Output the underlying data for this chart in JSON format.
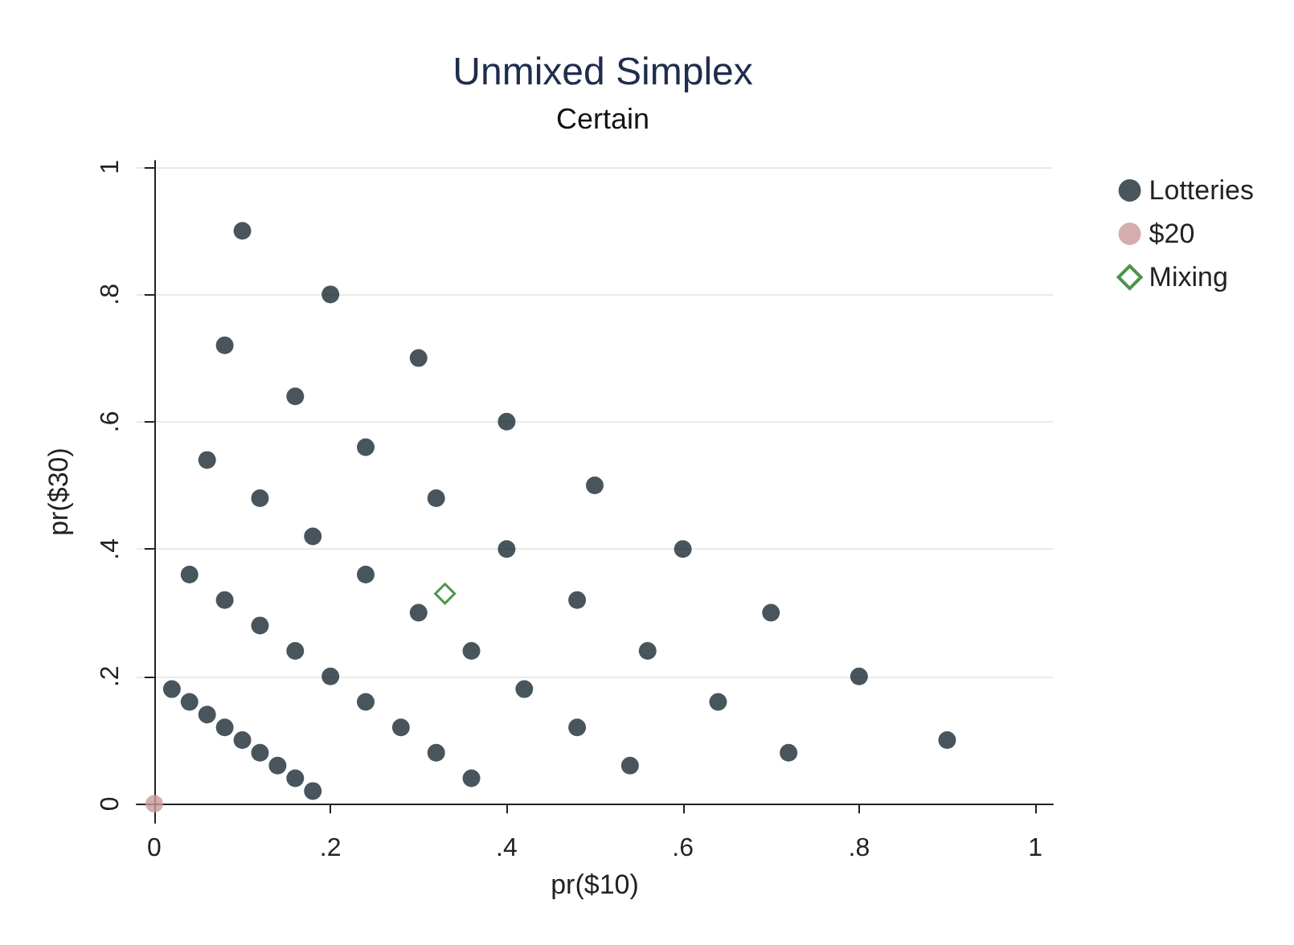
{
  "chart_data": {
    "type": "scatter",
    "title": "Unmixed Simplex",
    "subtitle": "Certain",
    "xlabel": "pr($10)",
    "ylabel": "pr($30)",
    "xlim": [
      -0.02,
      1.02
    ],
    "ylim": [
      -0.03,
      1.01
    ],
    "xticks": [
      {
        "value": 0,
        "label": "0"
      },
      {
        "value": 0.2,
        "label": ".2"
      },
      {
        "value": 0.4,
        "label": ".4"
      },
      {
        "value": 0.6,
        "label": ".6"
      },
      {
        "value": 0.8,
        "label": ".8"
      },
      {
        "value": 1,
        "label": "1"
      }
    ],
    "yticks": [
      {
        "value": 0,
        "label": "0"
      },
      {
        "value": 0.2,
        "label": ".2"
      },
      {
        "value": 0.4,
        "label": ".4"
      },
      {
        "value": 0.6,
        "label": ".6"
      },
      {
        "value": 0.8,
        "label": ".8"
      },
      {
        "value": 1,
        "label": "1"
      }
    ],
    "grid": "y",
    "legend": "right",
    "series": [
      {
        "name": "Lotteries",
        "color": "#1b2a33",
        "marker": "circle",
        "x": [
          0.1,
          0.2,
          0.08,
          0.3,
          0.16,
          0.4,
          0.06,
          0.24,
          0.12,
          0.32,
          0.5,
          0.18,
          0.4,
          0.6,
          0.04,
          0.24,
          0.08,
          0.3,
          0.48,
          0.7,
          0.12,
          0.16,
          0.36,
          0.56,
          0.2,
          0.8,
          0.02,
          0.42,
          0.04,
          0.24,
          0.64,
          0.06,
          0.08,
          0.28,
          0.48,
          0.1,
          0.9,
          0.12,
          0.32,
          0.72,
          0.14,
          0.54,
          0.16,
          0.36,
          0.18
        ],
        "values": [
          0.9,
          0.8,
          0.72,
          0.7,
          0.64,
          0.6,
          0.54,
          0.56,
          0.48,
          0.48,
          0.5,
          0.42,
          0.4,
          0.4,
          0.36,
          0.36,
          0.32,
          0.3,
          0.32,
          0.3,
          0.28,
          0.24,
          0.24,
          0.24,
          0.2,
          0.2,
          0.18,
          0.18,
          0.16,
          0.16,
          0.16,
          0.14,
          0.12,
          0.12,
          0.12,
          0.1,
          0.1,
          0.08,
          0.08,
          0.08,
          0.06,
          0.06,
          0.04,
          0.04,
          0.02
        ]
      },
      {
        "name": "$20",
        "color": "#c99a9a",
        "marker": "circle",
        "x": [
          0
        ],
        "values": [
          0
        ]
      },
      {
        "name": "Mixing",
        "color": "#1e7a1e",
        "marker": "diamond",
        "x": [
          0.33
        ],
        "values": [
          0.33
        ]
      }
    ]
  }
}
